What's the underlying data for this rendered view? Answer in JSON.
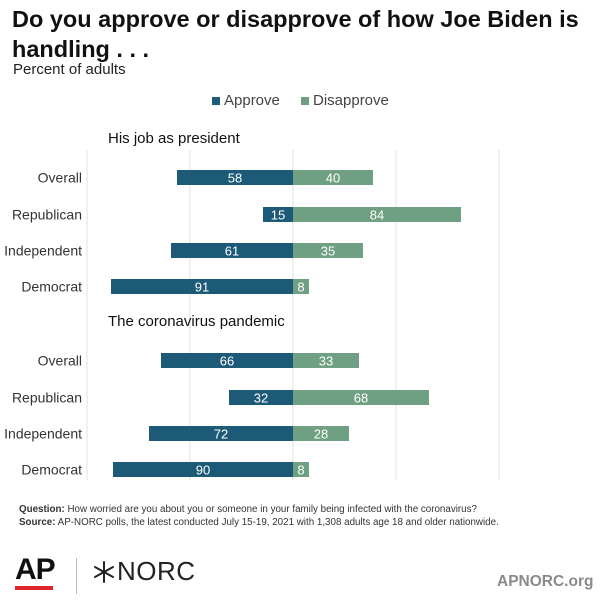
{
  "title": "Do you approve or disapprove of how Joe Biden is handling . . .",
  "subtitle": "Percent of adults",
  "legend": [
    {
      "label": "Approve",
      "color": "#1d5a78"
    },
    {
      "label": "Disapprove",
      "color": "#6fa083"
    }
  ],
  "chart_data": [
    {
      "type": "bar",
      "orientation": "horizontal-diverging",
      "title": "His job as president",
      "categories": [
        "Overall",
        "Republican",
        "Independent",
        "Democrat"
      ],
      "series": [
        {
          "name": "Approve",
          "values": [
            58,
            15,
            61,
            91
          ]
        },
        {
          "name": "Disapprove",
          "values": [
            40,
            84,
            35,
            8
          ]
        }
      ]
    },
    {
      "type": "bar",
      "orientation": "horizontal-diverging",
      "title": "The coronavirus pandemic",
      "categories": [
        "Overall",
        "Republican",
        "Independent",
        "Democrat"
      ],
      "series": [
        {
          "name": "Approve",
          "values": [
            66,
            32,
            72,
            90
          ]
        },
        {
          "name": "Disapprove",
          "values": [
            33,
            68,
            28,
            8
          ]
        }
      ]
    }
  ],
  "footnote": {
    "question_label": "Question:",
    "question_text": "How worried are you about you or someone in your family being infected with the coronavirus?",
    "source_label": "Source:",
    "source_text": "AP-NORC polls, the latest conducted July 15-19, 2021 with 1,308 adults age 18 and older nationwide."
  },
  "logos": {
    "ap": "AP",
    "norc": "NORC",
    "website": "APNORC.org"
  }
}
